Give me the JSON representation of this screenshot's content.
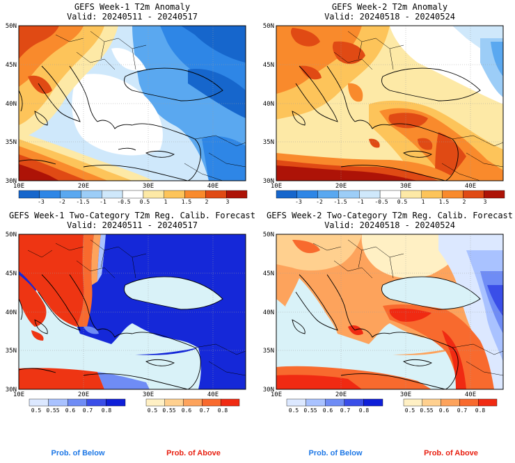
{
  "panels": [
    {
      "title": "GEFS Week-1 T2m Anomaly",
      "valid": "Valid: 20240511 - 20240517",
      "lat_labels": [
        "50N",
        "45N",
        "40N",
        "35N",
        "30N"
      ],
      "lon_labels": [
        "10E",
        "20E",
        "30E",
        "40E"
      ],
      "colorbar_labels": [
        "-3",
        "-2",
        "-1.5",
        "-1",
        "-0.5",
        "0.5",
        "1",
        "1.5",
        "2",
        "3"
      ],
      "colors": [
        "#1666cc",
        "#2e86e6",
        "#5aa8f0",
        "#9ccdf7",
        "#cfe8fb",
        "#ffffff",
        "#fde9a6",
        "#fdc45a",
        "#f98a2c",
        "#e04a14",
        "#ad1307"
      ]
    },
    {
      "title": "GEFS Week-2 T2m Anomaly",
      "valid": "Valid: 20240518 - 20240524",
      "lat_labels": [
        "50N",
        "45N",
        "40N",
        "35N",
        "30N"
      ],
      "lon_labels": [
        "10E",
        "20E",
        "30E",
        "40E"
      ],
      "colorbar_labels": [
        "-3",
        "-2",
        "-1.5",
        "-1",
        "-0.5",
        "0.5",
        "1",
        "1.5",
        "2",
        "3"
      ],
      "colors": [
        "#1666cc",
        "#2e86e6",
        "#5aa8f0",
        "#9ccdf7",
        "#cfe8fb",
        "#ffffff",
        "#fde9a6",
        "#fdc45a",
        "#f98a2c",
        "#e04a14",
        "#ad1307"
      ]
    },
    {
      "title": "GEFS Week-1 Two-Category T2m Reg. Calib. Forecast",
      "valid": "Valid: 20240511 - 20240517",
      "lat_labels": [
        "50N",
        "45N",
        "40N",
        "35N",
        "30N"
      ],
      "lon_labels": [
        "10E",
        "20E",
        "30E",
        "40E"
      ],
      "below_labels": [
        "0.5",
        "0.55",
        "0.6",
        "0.7",
        "0.8"
      ],
      "above_labels": [
        "0.5",
        "0.55",
        "0.6",
        "0.7",
        "0.8"
      ],
      "below_colors": [
        "#dce8ff",
        "#a9c2ff",
        "#6f8cf5",
        "#3a4ee8",
        "#0f1fd8"
      ],
      "above_colors": [
        "#fff0c4",
        "#ffd08f",
        "#fda35c",
        "#f86a2e",
        "#f02a12"
      ]
    },
    {
      "title": "GEFS Week-2 Two-Category T2m Reg. Calib. Forecast",
      "valid": "Valid: 20240518 - 20240524",
      "lat_labels": [
        "50N",
        "45N",
        "40N",
        "35N",
        "30N"
      ],
      "lon_labels": [
        "10E",
        "20E",
        "30E",
        "40E"
      ],
      "below_labels": [
        "0.5",
        "0.55",
        "0.6",
        "0.7",
        "0.8"
      ],
      "above_labels": [
        "0.5",
        "0.55",
        "0.6",
        "0.7",
        "0.8"
      ],
      "below_colors": [
        "#dce8ff",
        "#a9c2ff",
        "#6f8cf5",
        "#3a4ee8",
        "#0f1fd8"
      ],
      "above_colors": [
        "#fff0c4",
        "#ffd08f",
        "#fda35c",
        "#f86a2e",
        "#f02a12"
      ]
    }
  ],
  "footer": {
    "below": "Prob. of Below",
    "above": "Prob. of Above",
    "below_color": "#1e78e6",
    "above_color": "#e81f10"
  },
  "map_colors": {
    "sea": "#d9f2f8",
    "week1_prob_above": "#ee3513",
    "week1_prob_below": "#1528d8"
  }
}
